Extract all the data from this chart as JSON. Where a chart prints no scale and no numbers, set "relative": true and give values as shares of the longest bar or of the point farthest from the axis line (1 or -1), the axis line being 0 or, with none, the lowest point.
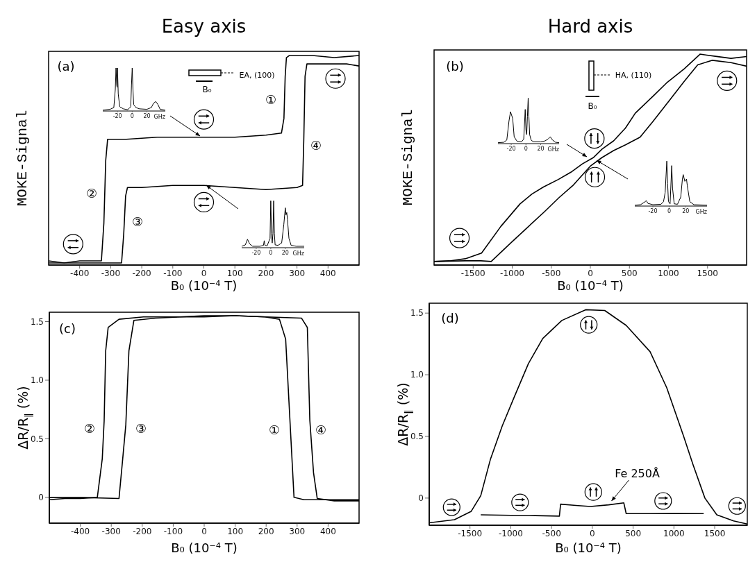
{
  "chart_data": [
    {
      "type": "line",
      "title": "Easy axis",
      "ylabel": "MOKE-Signal",
      "xlabel": "B₀  (10⁻⁴ T)",
      "relative": true,
      "xlim": [
        -500,
        500
      ],
      "xticks": [
        -400,
        -300,
        -200,
        -100,
        0,
        100,
        200,
        300,
        400
      ],
      "tick_labels": "x",
      "series": [
        {
          "color": "#000000",
          "x": [
            -500,
            -450,
            -400,
            -350,
            -330,
            -322,
            -316,
            -310,
            -250,
            -150,
            -50,
            0,
            100,
            200,
            250,
            258,
            262,
            266,
            275,
            350,
            420,
            500
          ],
          "values": [
            0.02,
            0.01,
            0.02,
            0.02,
            0.02,
            0.2,
            0.5,
            0.6,
            0.6,
            0.61,
            0.61,
            0.61,
            0.61,
            0.62,
            0.63,
            0.7,
            0.9,
            0.99,
            1.0,
            1.0,
            0.99,
            1.0
          ]
        },
        {
          "color": "#000000",
          "x": [
            -500,
            -400,
            -300,
            -265,
            -258,
            -252,
            -246,
            -200,
            -100,
            0,
            100,
            200,
            300,
            318,
            322,
            326,
            332,
            400,
            460,
            500
          ],
          "values": [
            0.01,
            0.01,
            0.01,
            0.01,
            0.15,
            0.33,
            0.37,
            0.37,
            0.38,
            0.38,
            0.37,
            0.36,
            0.37,
            0.38,
            0.6,
            0.9,
            0.96,
            0.96,
            0.96,
            0.95
          ]
        }
      ],
      "annotations": [
        "(a)",
        "EA, (100)",
        "B₀",
        "①",
        "②",
        "③",
        "④"
      ]
    },
    {
      "type": "line",
      "relative": true,
      "xlim": [
        -40,
        45
      ],
      "xticks": [
        -20,
        0,
        20
      ],
      "xlabel": "GHz",
      "tick_labels": "x",
      "series": [
        {
          "color": "#000000",
          "x": [
            -40,
            -30,
            -25,
            -23,
            -22,
            -21,
            -20.5,
            -20,
            -19,
            -17,
            -12,
            -6,
            -2,
            -1,
            0,
            1,
            2,
            5,
            10,
            20,
            26,
            29,
            32,
            35,
            38,
            45
          ],
          "values": [
            0.02,
            0.04,
            0.08,
            0.5,
            1.0,
            0.6,
            0.55,
            1.0,
            0.4,
            0.1,
            0.05,
            0.03,
            0.1,
            0.6,
            1.0,
            0.5,
            0.15,
            0.08,
            0.05,
            0.04,
            0.08,
            0.18,
            0.22,
            0.15,
            0.04,
            0.02
          ]
        }
      ]
    },
    {
      "type": "line",
      "relative": true,
      "xlim": [
        -40,
        46
      ],
      "xticks": [
        -20,
        0,
        20
      ],
      "xlabel": "GHz",
      "tick_labels": "x",
      "series": [
        {
          "color": "#000000",
          "x": [
            -40,
            -35,
            -32,
            -29,
            -25,
            -15,
            -10,
            -9,
            -8,
            -5,
            -1,
            0,
            1,
            2,
            3,
            4,
            5,
            6,
            10,
            15,
            18,
            20,
            21,
            22,
            23,
            25,
            28,
            35,
            46
          ],
          "values": [
            0.03,
            0.06,
            0.18,
            0.08,
            0.03,
            0.03,
            0.05,
            0.15,
            0.05,
            0.04,
            0.2,
            1.0,
            0.3,
            0.1,
            0.3,
            1.0,
            0.3,
            0.06,
            0.05,
            0.1,
            0.5,
            0.85,
            0.7,
            0.75,
            0.6,
            0.2,
            0.05,
            0.03,
            0.03
          ]
        }
      ]
    },
    {
      "type": "line",
      "title": "Hard axis",
      "ylabel": "MOKE-Signal",
      "xlabel": "B₀  (10⁻⁴ T)",
      "relative": true,
      "xlim": [
        -2000,
        2000
      ],
      "xticks": [
        -1500,
        -1000,
        -500,
        0,
        500,
        1000,
        1500
      ],
      "tick_labels": "x",
      "series": [
        {
          "color": "#000000",
          "x": [
            -2000,
            -1800,
            -1600,
            -1392,
            -1146,
            -900,
            -747,
            -600,
            -409,
            -250,
            -101,
            37,
            150,
            298,
            450,
            575,
            800,
            974,
            1200,
            1404,
            1600,
            1800,
            2000
          ],
          "values": [
            0.017,
            0.02,
            0.03,
            0.057,
            0.183,
            0.29,
            0.337,
            0.37,
            0.406,
            0.44,
            0.48,
            0.509,
            0.55,
            0.589,
            0.65,
            0.72,
            0.8,
            0.863,
            0.93,
            1.0,
            0.99,
            0.98,
            0.989
          ]
        },
        {
          "color": "#000000",
          "x": [
            -2000,
            -1600,
            -1400,
            -1269,
            -1023,
            -800,
            -593,
            -400,
            -224,
            0,
            150,
            298,
            450,
            636,
            800,
            1005,
            1200,
            1374,
            1558,
            1800,
            2000
          ],
          "values": [
            0.017,
            0.02,
            0.02,
            0.017,
            0.103,
            0.18,
            0.251,
            0.32,
            0.377,
            0.469,
            0.51,
            0.543,
            0.57,
            0.606,
            0.68,
            0.777,
            0.87,
            0.949,
            0.971,
            0.96,
            0.943
          ]
        }
      ],
      "annotations": [
        "(b)",
        "HA, (110)",
        "B₀"
      ]
    },
    {
      "type": "line",
      "relative": true,
      "xlim": [
        -38,
        45
      ],
      "xticks": [
        -20,
        0,
        20
      ],
      "xlabel": "GHz",
      "tick_labels": "x",
      "series": [
        {
          "color": "#000000",
          "x": [
            -38,
            -30,
            -26,
            -23,
            -21,
            -20,
            -18,
            -16,
            -12,
            -6,
            -3,
            -1,
            0,
            1,
            2,
            3,
            4,
            5,
            7,
            10,
            20,
            26,
            30,
            33,
            36,
            40,
            45
          ],
          "values": [
            0.02,
            0.03,
            0.08,
            0.5,
            0.7,
            0.65,
            0.55,
            0.15,
            0.05,
            0.04,
            0.1,
            0.75,
            0.3,
            0.2,
            0.6,
            1.0,
            0.6,
            0.2,
            0.08,
            0.04,
            0.04,
            0.06,
            0.1,
            0.15,
            0.08,
            0.03,
            0.02
          ]
        }
      ]
    },
    {
      "type": "line",
      "relative": true,
      "xlim": [
        -42,
        46
      ],
      "xticks": [
        -20,
        0,
        20
      ],
      "xlabel": "GHz",
      "tick_labels": "x",
      "series": [
        {
          "color": "#000000",
          "x": [
            -42,
            -35,
            -30,
            -28,
            -26,
            -20,
            -10,
            -7,
            -5,
            -3,
            -2,
            -1,
            1,
            3,
            4,
            6,
            10,
            14,
            16,
            17,
            19,
            21,
            22,
            25,
            30,
            46
          ],
          "values": [
            0.02,
            0.03,
            0.09,
            0.12,
            0.06,
            0.03,
            0.04,
            0.1,
            0.3,
            1.0,
            0.5,
            0.1,
            0.05,
            0.9,
            0.4,
            0.05,
            0.04,
            0.2,
            0.6,
            0.7,
            0.55,
            0.6,
            0.45,
            0.1,
            0.03,
            0.02
          ]
        }
      ]
    },
    {
      "type": "line",
      "xlabel": "B₀  (10⁻⁴ T)",
      "ylabel": "ΔR/R$_{∥}$ (%)",
      "xlim": [
        -500,
        500
      ],
      "ylim": [
        -0.22,
        1.58
      ],
      "xticks": [
        -400,
        -300,
        -200,
        -100,
        0,
        100,
        200,
        300,
        400
      ],
      "yticks": [
        0,
        0.5,
        {
          "value": 1,
          "label": "1.0"
        },
        1.5
      ],
      "series": [
        {
          "color": "#000000",
          "x": [
            -500,
            -450,
            -400,
            -345,
            -329,
            -323,
            -318,
            -310,
            -275,
            -196,
            -100,
            0,
            100,
            196,
            243,
            263,
            278,
            290,
            322,
            400,
            500
          ],
          "values": [
            -0.02,
            -0.01,
            -0.01,
            0.0,
            0.33,
            0.65,
            1.25,
            1.45,
            1.52,
            1.54,
            1.54,
            1.54,
            1.55,
            1.54,
            1.52,
            1.35,
            0.6,
            0.0,
            -0.02,
            -0.02,
            -0.02
          ]
        },
        {
          "color": "#000000",
          "x": [
            -500,
            -400,
            -275,
            -263,
            -253,
            -243,
            -227,
            -157,
            0,
            100,
            200,
            314,
            333,
            341,
            353,
            365,
            420,
            500
          ],
          "values": [
            0,
            0,
            -0.01,
            0.33,
            0.62,
            1.25,
            1.51,
            1.53,
            1.55,
            1.55,
            1.54,
            1.53,
            1.45,
            0.66,
            0.21,
            -0.01,
            -0.03,
            -0.03
          ]
        }
      ],
      "annotations": [
        "(c)",
        "②",
        "③",
        "①",
        "④"
      ]
    },
    {
      "type": "line",
      "xlabel": "B₀  (10⁻⁴ T)",
      "ylabel": "ΔR/R$_{∥}$ (%)",
      "xlim": [
        -2000,
        1900
      ],
      "ylim": [
        -0.22,
        1.58
      ],
      "xticks": [
        -1500,
        -1000,
        -500,
        0,
        500,
        1000,
        1500
      ],
      "yticks": [
        0,
        0.5,
        {
          "value": 1,
          "label": "1.0"
        },
        1.5
      ],
      "series": [
        {
          "color": "#000000",
          "x": [
            -2000,
            -1690,
            -1485,
            -1368,
            -1251,
            -1105,
            -959,
            -784,
            -608,
            -374,
            -82,
            152,
            415,
            708,
            912,
            1117,
            1234,
            1380,
            1526,
            1731,
            1900
          ],
          "values": [
            -0.2,
            -0.175,
            -0.107,
            0.02,
            0.311,
            0.584,
            0.817,
            1.09,
            1.294,
            1.44,
            1.527,
            1.521,
            1.4,
            1.187,
            0.895,
            0.506,
            0.272,
            0,
            -0.136,
            -0.185,
            -0.21
          ]
        },
        {
          "color": "#000000",
          "x": [
            -1368,
            -1000,
            -700,
            -404,
            -389,
            -200,
            -23,
            200,
            386,
            415,
            700,
            1000,
            1365
          ],
          "values": [
            -0.136,
            -0.14,
            -0.142,
            -0.146,
            -0.049,
            -0.06,
            -0.068,
            -0.055,
            -0.039,
            -0.126,
            -0.126,
            -0.125,
            -0.126
          ]
        }
      ],
      "annotations": [
        "(d)",
        {
          "text": "Fe 250Å",
          "x": 210,
          "y": -0.04
        }
      ]
    }
  ]
}
